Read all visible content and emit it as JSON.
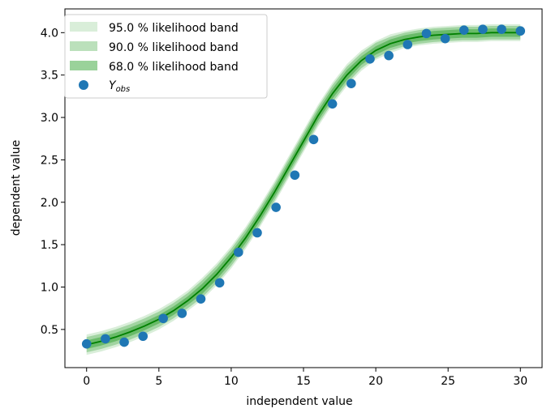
{
  "chart_data": {
    "type": "line",
    "title": "",
    "xlabel": "independent value",
    "ylabel": "dependent value",
    "xlim": [
      -1.5,
      31.5
    ],
    "ylim": [
      0.05,
      4.28
    ],
    "xticks": [
      0,
      5,
      10,
      15,
      20,
      25,
      30
    ],
    "xtick_labels": [
      "0",
      "5",
      "10",
      "15",
      "20",
      "25",
      "30"
    ],
    "yticks": [
      0.5,
      1.0,
      1.5,
      2.0,
      2.5,
      3.0,
      3.5,
      4.0
    ],
    "ytick_labels": [
      "0.5",
      "1.0",
      "1.5",
      "2.0",
      "2.5",
      "3.0",
      "3.5",
      "4.0"
    ],
    "grid": false,
    "legend_position": "top-left",
    "legend": [
      {
        "label": "95.0 % likelihood band",
        "kind": "band",
        "color": "#2ca02c",
        "opacity": 0.18
      },
      {
        "label": "90.0 % likelihood band",
        "kind": "band",
        "color": "#2ca02c",
        "opacity": 0.32
      },
      {
        "label": "68.0 % likelihood band",
        "kind": "band",
        "color": "#2ca02c",
        "opacity": 0.48
      },
      {
        "label": "Y",
        "sub": "obs",
        "kind": "marker",
        "color": "#1f77b4"
      }
    ],
    "fit_color": "#008000",
    "band_color": "#2ca02c",
    "fit": {
      "x": [
        0,
        1,
        2,
        3,
        4,
        5,
        6,
        7,
        8,
        9,
        10,
        11,
        12,
        13,
        14,
        15,
        16,
        17,
        18,
        19,
        20,
        21,
        22,
        23,
        24,
        25,
        26,
        27,
        28,
        29,
        30
      ],
      "y": [
        0.32,
        0.36,
        0.41,
        0.47,
        0.54,
        0.62,
        0.72,
        0.84,
        0.98,
        1.15,
        1.35,
        1.58,
        1.84,
        2.12,
        2.42,
        2.72,
        3.02,
        3.28,
        3.5,
        3.67,
        3.79,
        3.87,
        3.92,
        3.95,
        3.97,
        3.98,
        3.99,
        3.99,
        4.0,
        4.0,
        4.0
      ]
    },
    "bands": [
      {
        "label": "95.0 % likelihood band",
        "half_width": [
          0.12,
          0.12,
          0.12,
          0.12,
          0.12,
          0.12,
          0.12,
          0.12,
          0.13,
          0.13,
          0.13,
          0.13,
          0.13,
          0.13,
          0.13,
          0.13,
          0.13,
          0.13,
          0.13,
          0.12,
          0.11,
          0.11,
          0.1,
          0.1,
          0.1,
          0.1,
          0.1,
          0.1,
          0.1,
          0.1,
          0.1
        ]
      },
      {
        "label": "90.0 % likelihood band",
        "half_width": [
          0.09,
          0.09,
          0.09,
          0.09,
          0.09,
          0.09,
          0.09,
          0.09,
          0.1,
          0.1,
          0.1,
          0.1,
          0.1,
          0.1,
          0.1,
          0.1,
          0.1,
          0.1,
          0.1,
          0.09,
          0.09,
          0.08,
          0.08,
          0.08,
          0.08,
          0.08,
          0.08,
          0.08,
          0.08,
          0.08,
          0.08
        ]
      },
      {
        "label": "68.0 % likelihood band",
        "half_width": [
          0.05,
          0.05,
          0.05,
          0.05,
          0.05,
          0.05,
          0.05,
          0.05,
          0.06,
          0.06,
          0.06,
          0.06,
          0.06,
          0.06,
          0.06,
          0.06,
          0.06,
          0.06,
          0.06,
          0.05,
          0.05,
          0.05,
          0.05,
          0.05,
          0.05,
          0.05,
          0.05,
          0.05,
          0.05,
          0.05,
          0.05
        ]
      }
    ],
    "observed": {
      "x": [
        0.0,
        1.3,
        2.6,
        3.9,
        5.3,
        6.6,
        7.9,
        9.2,
        10.5,
        11.8,
        13.1,
        14.4,
        15.7,
        17.0,
        18.3,
        19.6,
        20.9,
        22.2,
        23.5,
        24.8,
        26.1,
        27.4,
        28.7,
        30.0
      ],
      "y": [
        0.33,
        0.39,
        0.35,
        0.42,
        0.63,
        0.69,
        0.86,
        1.05,
        1.41,
        1.64,
        1.94,
        2.32,
        2.74,
        3.16,
        3.4,
        3.69,
        3.73,
        3.86,
        3.99,
        3.93,
        4.03,
        4.04,
        4.04,
        4.02
      ]
    }
  }
}
